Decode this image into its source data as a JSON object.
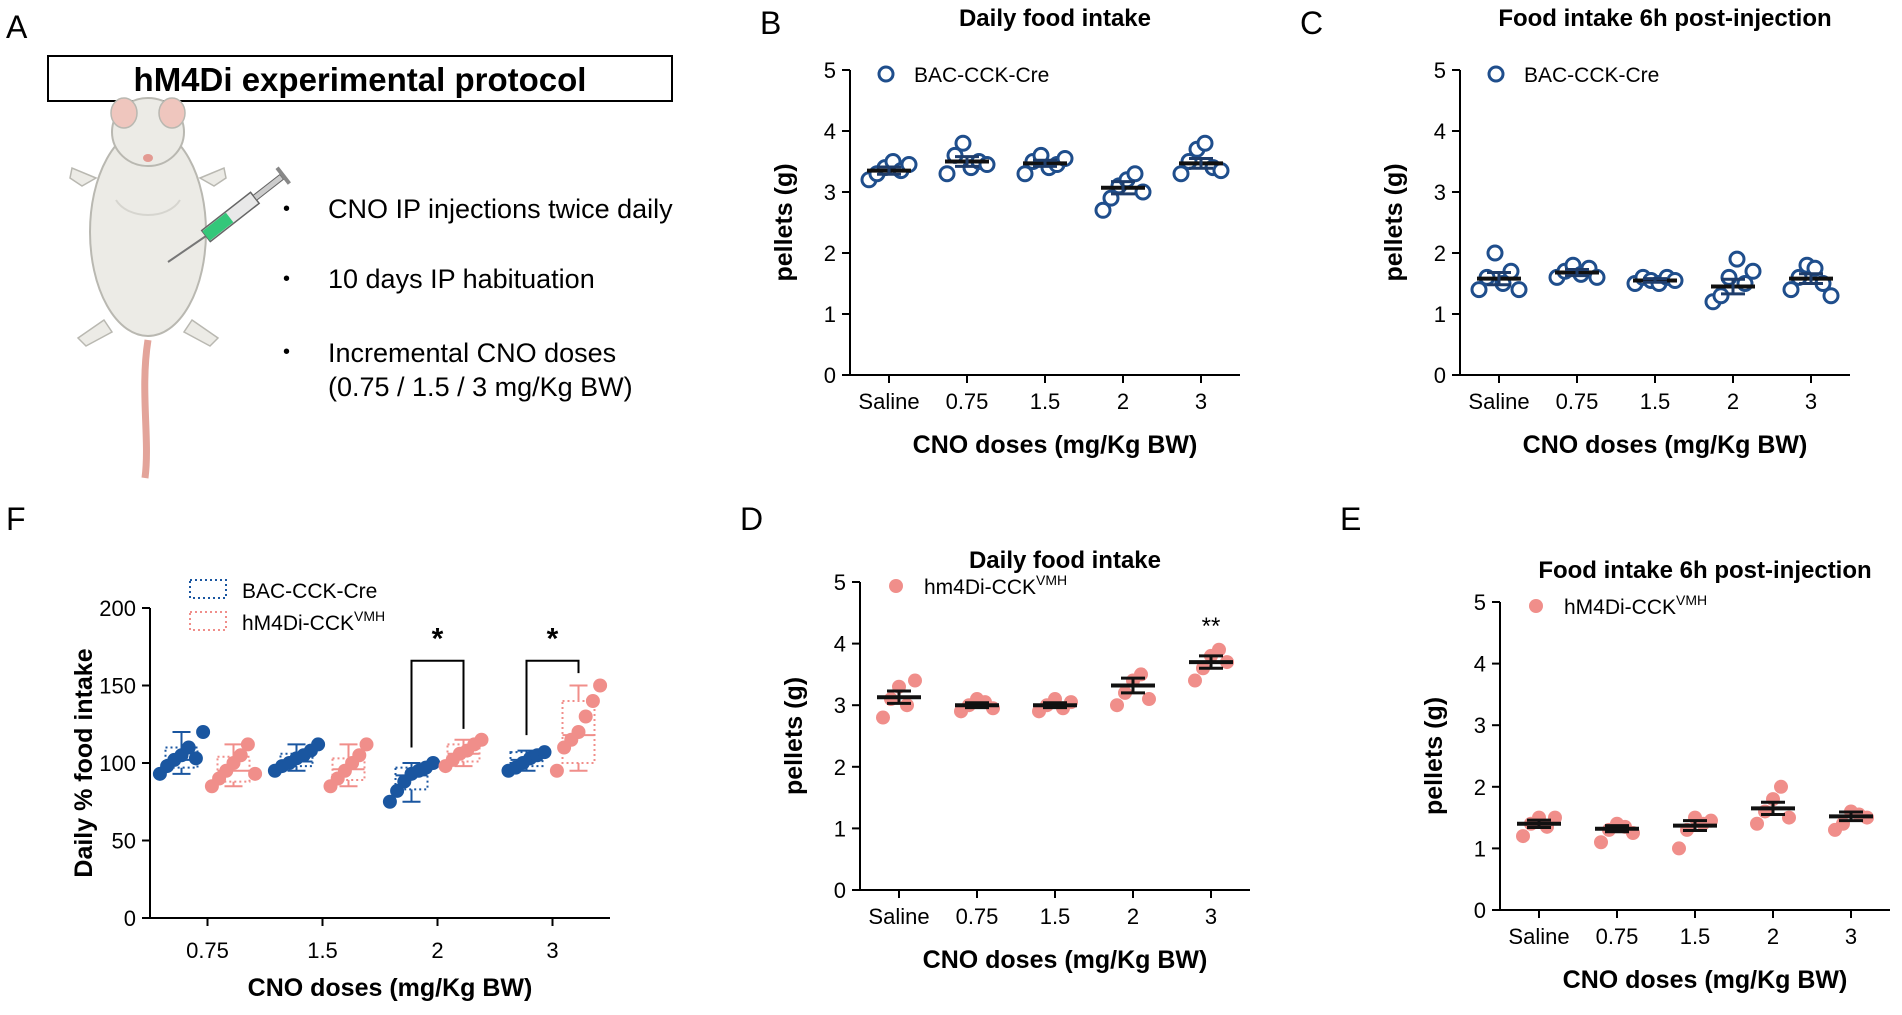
{
  "panel_a": {
    "letter": "A",
    "title": "hM4Di experimental protocol",
    "bullets": [
      "CNO IP injections twice daily",
      "10 days IP habituation",
      "Incremental CNO doses",
      "(0.75 / 1.5 / 3 mg/Kg BW)"
    ],
    "bullet_symbol": "•",
    "icons": [
      "mouse-illustration",
      "syringe-icon"
    ]
  },
  "colors": {
    "blue": "#1f4e8c",
    "blue_fill": "#1a56a0",
    "pink": "#f08e8a",
    "pink_fill": "#f2938e",
    "mean_bar": "#111111"
  },
  "chart_data": [
    {
      "id": "B",
      "letter": "B",
      "type": "scatter",
      "title": "Daily food intake",
      "xlabel": "CNO doses (mg/Kg BW)",
      "ylabel": "pellets (g)",
      "categories": [
        "Saline",
        "0.75",
        "1.5",
        "2",
        "3"
      ],
      "yticks": [
        "0",
        "1",
        "2",
        "3",
        "4",
        "5"
      ],
      "ylim": [
        0,
        5
      ],
      "legend": {
        "label": "BAC-CCK-Cre",
        "sup": "",
        "marker": "open-circle",
        "color": "#1f4e8c"
      },
      "series": [
        {
          "name": "BAC-CCK-Cre",
          "marker": "open",
          "points": [
            [
              3.2,
              3.3,
              3.4,
              3.5,
              3.35,
              3.45
            ],
            [
              3.3,
              3.6,
              3.8,
              3.4,
              3.5,
              3.45
            ],
            [
              3.3,
              3.5,
              3.6,
              3.4,
              3.45,
              3.55
            ],
            [
              2.7,
              2.9,
              3.1,
              3.2,
              3.3,
              3.0
            ],
            [
              3.3,
              3.5,
              3.7,
              3.8,
              3.4,
              3.35
            ]
          ],
          "mean": [
            3.35,
            3.5,
            3.47,
            3.07,
            3.47
          ],
          "sem": [
            0.06,
            0.08,
            0.05,
            0.1,
            0.08
          ]
        }
      ],
      "annotations": []
    },
    {
      "id": "C",
      "letter": "C",
      "type": "scatter",
      "title": "Food intake 6h post-injection",
      "xlabel": "CNO doses (mg/Kg BW)",
      "ylabel": "pellets (g)",
      "categories": [
        "Saline",
        "0.75",
        "1.5",
        "2",
        "3"
      ],
      "yticks": [
        "0",
        "1",
        "2",
        "3",
        "4",
        "5"
      ],
      "ylim": [
        0,
        5
      ],
      "legend": {
        "label": "BAC-CCK-Cre",
        "sup": "",
        "marker": "open-circle",
        "color": "#1f4e8c"
      },
      "series": [
        {
          "name": "BAC-CCK-Cre",
          "marker": "open",
          "points": [
            [
              1.4,
              1.6,
              2.0,
              1.5,
              1.7,
              1.4
            ],
            [
              1.6,
              1.7,
              1.8,
              1.65,
              1.75,
              1.6
            ],
            [
              1.5,
              1.6,
              1.55,
              1.5,
              1.6,
              1.55
            ],
            [
              1.2,
              1.3,
              1.6,
              1.9,
              1.5,
              1.7
            ],
            [
              1.4,
              1.6,
              1.8,
              1.75,
              1.5,
              1.3
            ]
          ],
          "mean": [
            1.58,
            1.68,
            1.55,
            1.45,
            1.58
          ],
          "sem": [
            0.1,
            0.05,
            0.03,
            0.12,
            0.08
          ]
        }
      ],
      "annotations": []
    },
    {
      "id": "D",
      "letter": "D",
      "type": "scatter",
      "title": "Daily food intake",
      "xlabel": "CNO doses (mg/Kg BW)",
      "ylabel": "pellets (g)",
      "categories": [
        "Saline",
        "0.75",
        "1.5",
        "2",
        "3"
      ],
      "yticks": [
        "0",
        "1",
        "2",
        "3",
        "4",
        "5"
      ],
      "ylim": [
        0,
        5
      ],
      "legend": {
        "label": "hm4Di-CCK",
        "sup": "VMH",
        "marker": "filled-circle",
        "color": "#f08e8a"
      },
      "series": [
        {
          "name": "hm4Di-CCKVMH",
          "marker": "filled",
          "points": [
            [
              2.8,
              3.1,
              3.3,
              3.0,
              3.4
            ],
            [
              2.9,
              3.0,
              3.1,
              3.05,
              2.95
            ],
            [
              2.9,
              3.0,
              3.1,
              2.95,
              3.05
            ],
            [
              3.0,
              3.2,
              3.4,
              3.5,
              3.1
            ],
            [
              3.4,
              3.6,
              3.8,
              3.9,
              3.7
            ]
          ],
          "mean": [
            3.13,
            3.0,
            3.0,
            3.32,
            3.7
          ],
          "sem": [
            0.1,
            0.04,
            0.04,
            0.12,
            0.1
          ]
        }
      ],
      "annotations": [
        {
          "category": "3",
          "text": "**"
        }
      ]
    },
    {
      "id": "E",
      "letter": "E",
      "type": "scatter",
      "title": "Food intake 6h post-injection",
      "xlabel": "CNO doses (mg/Kg BW)",
      "ylabel": "pellets (g)",
      "categories": [
        "Saline",
        "0.75",
        "1.5",
        "2",
        "3"
      ],
      "yticks": [
        "0",
        "1",
        "2",
        "3",
        "4",
        "5"
      ],
      "ylim": [
        0,
        5
      ],
      "legend": {
        "label": "hM4Di-CCK",
        "sup": "VMH",
        "marker": "filled-circle",
        "color": "#f08e8a"
      },
      "series": [
        {
          "name": "hM4Di-CCKVMH",
          "marker": "filled",
          "points": [
            [
              1.2,
              1.4,
              1.5,
              1.35,
              1.5
            ],
            [
              1.1,
              1.3,
              1.4,
              1.35,
              1.25
            ],
            [
              1.0,
              1.3,
              1.5,
              1.4,
              1.45
            ],
            [
              1.4,
              1.6,
              1.8,
              2.0,
              1.5
            ],
            [
              1.3,
              1.4,
              1.6,
              1.55,
              1.5
            ]
          ],
          "mean": [
            1.4,
            1.32,
            1.37,
            1.65,
            1.52
          ],
          "sem": [
            0.06,
            0.05,
            0.08,
            0.1,
            0.07
          ]
        }
      ],
      "annotations": []
    },
    {
      "id": "F",
      "letter": "F",
      "type": "box",
      "xlabel": "CNO doses (mg/Kg BW)",
      "ylabel": "Daily % food intake",
      "categories": [
        "0.75",
        "1.5",
        "2",
        "3"
      ],
      "yticks": [
        "0",
        "50",
        "100",
        "150",
        "200"
      ],
      "ylim": [
        0,
        200
      ],
      "legend": [
        {
          "label": "BAC-CCK-Cre",
          "sup": "",
          "color": "#1a56a0"
        },
        {
          "label": "hM4Di-CCK",
          "sup": "VMH",
          "color": "#f08e8a"
        }
      ],
      "series": [
        {
          "name": "BAC-CCK-Cre",
          "color": "#1a56a0",
          "points": [
            [
              93,
              98,
              102,
              105,
              110,
              103,
              120
            ],
            [
              95,
              98,
              100,
              103,
              105,
              108,
              112
            ],
            [
              75,
              82,
              88,
              93,
              95,
              97,
              100
            ],
            [
              95,
              97,
              100,
              103,
              105,
              107
            ]
          ],
          "box": [
            [
              97,
              102,
              110,
              93,
              120
            ],
            [
              98,
              101,
              106,
              95,
              112
            ],
            [
              83,
              92,
              97,
              75,
              100
            ],
            [
              98,
              102,
              107,
              95,
              108
            ]
          ]
        },
        {
          "name": "hM4Di-CCKVMH",
          "color": "#f08e8a",
          "points": [
            [
              85,
              90,
              95,
              100,
              105,
              112,
              93
            ],
            [
              85,
              90,
              95,
              100,
              105,
              112
            ],
            [
              98,
              102,
              106,
              108,
              112,
              115
            ],
            [
              95,
              110,
              115,
              120,
              130,
              140,
              150
            ]
          ],
          "box": [
            [
              88,
              95,
              104,
              85,
              112
            ],
            [
              89,
              96,
              103,
              85,
              112
            ],
            [
              101,
              106,
              112,
              98,
              115
            ],
            [
              100,
              118,
              140,
              95,
              150
            ]
          ]
        }
      ],
      "significance": [
        {
          "category": "2",
          "text": "*"
        },
        {
          "category": "3",
          "text": "*"
        }
      ]
    }
  ]
}
